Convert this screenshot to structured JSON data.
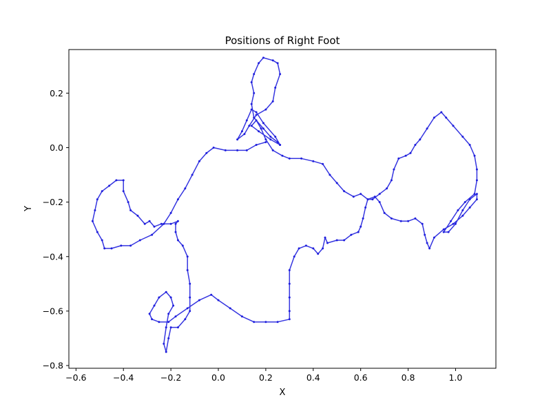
{
  "chart_data": {
    "type": "line",
    "title": "Positions of Right Foot",
    "xlabel": "X",
    "ylabel": "Y",
    "xlim": [
      -0.63,
      1.17
    ],
    "ylim": [
      -0.81,
      0.36
    ],
    "xticks": [
      -0.6,
      -0.4,
      -0.2,
      0.0,
      0.2,
      0.4,
      0.6,
      0.8,
      1.0
    ],
    "xtick_labels": [
      "−0.6",
      "−0.4",
      "−0.2",
      "0.0",
      "0.2",
      "0.4",
      "0.6",
      "0.8",
      "1.0"
    ],
    "yticks": [
      0.2,
      0.0,
      -0.2,
      -0.4,
      -0.6,
      -0.8
    ],
    "ytick_labels": [
      "0.2",
      "0.0",
      "−0.2",
      "−0.4",
      "−0.6",
      "−0.8"
    ],
    "grid": false,
    "legend": false,
    "marker": "dot",
    "line_color": "#1f1fdd",
    "series": [
      {
        "points": [
          [
            0.26,
            0.01
          ],
          [
            0.24,
            0.04
          ],
          [
            0.19,
            0.09
          ],
          [
            0.16,
            0.13
          ],
          [
            0.14,
            0.14
          ],
          [
            0.12,
            0.1
          ],
          [
            0.1,
            0.06
          ],
          [
            0.08,
            0.03
          ],
          [
            0.11,
            0.05
          ],
          [
            0.13,
            0.08
          ],
          [
            0.16,
            0.12
          ],
          [
            0.2,
            0.14
          ],
          [
            0.23,
            0.17
          ],
          [
            0.24,
            0.22
          ],
          [
            0.26,
            0.27
          ],
          [
            0.25,
            0.31
          ],
          [
            0.23,
            0.32
          ],
          [
            0.19,
            0.33
          ],
          [
            0.17,
            0.31
          ],
          [
            0.15,
            0.27
          ],
          [
            0.14,
            0.24
          ],
          [
            0.15,
            0.2
          ],
          [
            0.14,
            0.16
          ],
          [
            0.15,
            0.11
          ],
          [
            0.19,
            0.07
          ],
          [
            0.22,
            0.04
          ],
          [
            0.25,
            0.02
          ],
          [
            0.26,
            0.01
          ],
          [
            0.22,
            0.03
          ],
          [
            0.17,
            0.06
          ],
          [
            0.14,
            0.08
          ],
          [
            0.16,
            0.1
          ],
          [
            0.18,
            0.07
          ],
          [
            0.2,
            0.03
          ],
          [
            0.23,
            -0.01
          ],
          [
            0.27,
            -0.03
          ],
          [
            0.3,
            -0.04
          ],
          [
            0.35,
            -0.04
          ],
          [
            0.4,
            -0.05
          ],
          [
            0.44,
            -0.06
          ],
          [
            0.47,
            -0.1
          ],
          [
            0.5,
            -0.13
          ],
          [
            0.53,
            -0.16
          ],
          [
            0.57,
            -0.18
          ],
          [
            0.6,
            -0.17
          ],
          [
            0.63,
            -0.19
          ],
          [
            0.66,
            -0.18
          ],
          [
            0.68,
            -0.2
          ],
          [
            0.7,
            -0.24
          ],
          [
            0.73,
            -0.26
          ],
          [
            0.77,
            -0.27
          ],
          [
            0.8,
            -0.27
          ],
          [
            0.83,
            -0.26
          ],
          [
            0.86,
            -0.28
          ],
          [
            0.87,
            -0.32
          ],
          [
            0.88,
            -0.35
          ],
          [
            0.89,
            -0.37
          ],
          [
            0.91,
            -0.33
          ],
          [
            0.95,
            -0.3
          ],
          [
            0.99,
            -0.28
          ],
          [
            1.03,
            -0.25
          ],
          [
            1.06,
            -0.22
          ],
          [
            1.09,
            -0.19
          ],
          [
            1.09,
            -0.17
          ],
          [
            1.06,
            -0.19
          ],
          [
            1.03,
            -0.23
          ],
          [
            1.0,
            -0.28
          ],
          [
            0.97,
            -0.31
          ],
          [
            0.95,
            -0.31
          ],
          [
            0.98,
            -0.27
          ],
          [
            1.01,
            -0.23
          ],
          [
            1.04,
            -0.2
          ],
          [
            1.08,
            -0.17
          ],
          [
            1.09,
            -0.12
          ],
          [
            1.09,
            -0.08
          ],
          [
            1.08,
            -0.03
          ],
          [
            1.06,
            0.01
          ],
          [
            1.03,
            0.04
          ],
          [
            0.99,
            0.08
          ],
          [
            0.96,
            0.11
          ],
          [
            0.94,
            0.13
          ],
          [
            0.91,
            0.11
          ],
          [
            0.88,
            0.07
          ],
          [
            0.85,
            0.03
          ],
          [
            0.83,
            0.01
          ],
          [
            0.81,
            -0.02
          ],
          [
            0.79,
            -0.03
          ],
          [
            0.76,
            -0.04
          ],
          [
            0.74,
            -0.08
          ],
          [
            0.73,
            -0.12
          ],
          [
            0.71,
            -0.15
          ],
          [
            0.68,
            -0.17
          ],
          [
            0.65,
            -0.19
          ],
          [
            0.63,
            -0.19
          ],
          [
            0.62,
            -0.22
          ],
          [
            0.61,
            -0.26
          ],
          [
            0.6,
            -0.29
          ],
          [
            0.59,
            -0.31
          ],
          [
            0.56,
            -0.32
          ],
          [
            0.53,
            -0.34
          ],
          [
            0.5,
            -0.34
          ],
          [
            0.46,
            -0.35
          ],
          [
            0.45,
            -0.33
          ],
          [
            0.44,
            -0.37
          ],
          [
            0.42,
            -0.39
          ],
          [
            0.4,
            -0.37
          ],
          [
            0.37,
            -0.36
          ],
          [
            0.34,
            -0.37
          ],
          [
            0.32,
            -0.4
          ],
          [
            0.3,
            -0.45
          ],
          [
            0.3,
            -0.5
          ],
          [
            0.3,
            -0.55
          ],
          [
            0.3,
            -0.6
          ],
          [
            0.3,
            -0.63
          ],
          [
            0.25,
            -0.64
          ],
          [
            0.2,
            -0.64
          ],
          [
            0.15,
            -0.64
          ],
          [
            0.1,
            -0.62
          ],
          [
            0.05,
            -0.59
          ],
          [
            0.0,
            -0.56
          ],
          [
            -0.03,
            -0.54
          ],
          [
            -0.08,
            -0.56
          ],
          [
            -0.13,
            -0.59
          ],
          [
            -0.18,
            -0.62
          ],
          [
            -0.21,
            -0.64
          ],
          [
            -0.25,
            -0.64
          ],
          [
            -0.28,
            -0.63
          ],
          [
            -0.29,
            -0.61
          ],
          [
            -0.27,
            -0.58
          ],
          [
            -0.25,
            -0.55
          ],
          [
            -0.22,
            -0.53
          ],
          [
            -0.2,
            -0.55
          ],
          [
            -0.19,
            -0.58
          ],
          [
            -0.21,
            -0.61
          ],
          [
            -0.22,
            -0.66
          ],
          [
            -0.23,
            -0.72
          ],
          [
            -0.22,
            -0.75
          ],
          [
            -0.21,
            -0.7
          ],
          [
            -0.2,
            -0.66
          ],
          [
            -0.17,
            -0.66
          ],
          [
            -0.14,
            -0.63
          ],
          [
            -0.12,
            -0.6
          ],
          [
            -0.12,
            -0.55
          ],
          [
            -0.12,
            -0.5
          ],
          [
            -0.13,
            -0.45
          ],
          [
            -0.13,
            -0.4
          ],
          [
            -0.15,
            -0.36
          ],
          [
            -0.17,
            -0.34
          ],
          [
            -0.18,
            -0.31
          ],
          [
            -0.18,
            -0.28
          ],
          [
            -0.17,
            -0.27
          ],
          [
            -0.2,
            -0.28
          ],
          [
            -0.24,
            -0.28
          ],
          [
            -0.27,
            -0.29
          ],
          [
            -0.29,
            -0.27
          ],
          [
            -0.31,
            -0.28
          ],
          [
            -0.34,
            -0.25
          ],
          [
            -0.37,
            -0.23
          ],
          [
            -0.38,
            -0.2
          ],
          [
            -0.4,
            -0.16
          ],
          [
            -0.4,
            -0.12
          ],
          [
            -0.43,
            -0.12
          ],
          [
            -0.46,
            -0.14
          ],
          [
            -0.49,
            -0.16
          ],
          [
            -0.51,
            -0.19
          ],
          [
            -0.52,
            -0.23
          ],
          [
            -0.53,
            -0.27
          ],
          [
            -0.51,
            -0.31
          ],
          [
            -0.49,
            -0.34
          ],
          [
            -0.48,
            -0.37
          ],
          [
            -0.45,
            -0.37
          ],
          [
            -0.41,
            -0.36
          ],
          [
            -0.37,
            -0.36
          ],
          [
            -0.33,
            -0.34
          ],
          [
            -0.28,
            -0.32
          ],
          [
            -0.23,
            -0.28
          ],
          [
            -0.2,
            -0.24
          ],
          [
            -0.17,
            -0.19
          ],
          [
            -0.14,
            -0.15
          ],
          [
            -0.11,
            -0.1
          ],
          [
            -0.08,
            -0.05
          ],
          [
            -0.05,
            -0.02
          ],
          [
            -0.02,
            0.0
          ],
          [
            0.03,
            -0.01
          ],
          [
            0.08,
            -0.01
          ],
          [
            0.12,
            -0.01
          ],
          [
            0.16,
            0.01
          ],
          [
            0.2,
            0.02
          ]
        ]
      }
    ]
  }
}
